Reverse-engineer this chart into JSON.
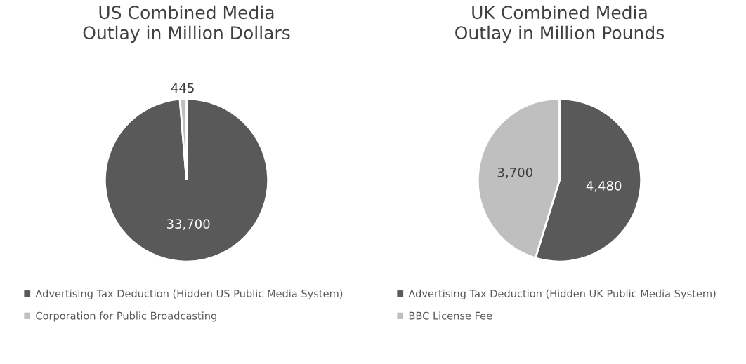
{
  "chart_data": [
    {
      "type": "pie",
      "title": "US Combined Media\nOutlay in Million Dollars",
      "categories": [
        "Advertising Tax Deduction (Hidden US Public Media System)",
        "Corporation for Public Broadcasting"
      ],
      "values": [
        33700,
        445
      ],
      "colors": [
        "#595959",
        "#bfbfbf"
      ],
      "value_labels": [
        "33,700",
        "445"
      ],
      "legend": "bottom"
    },
    {
      "type": "pie",
      "title": "UK Combined Media\nOutlay in Million Pounds",
      "categories": [
        "Advertising Tax Deduction (Hidden UK Public Media System)",
        "BBC License Fee"
      ],
      "values": [
        4480,
        3700
      ],
      "colors": [
        "#595959",
        "#bfbfbf"
      ],
      "value_labels": [
        "4,480",
        "3,700"
      ],
      "legend": "bottom"
    }
  ]
}
